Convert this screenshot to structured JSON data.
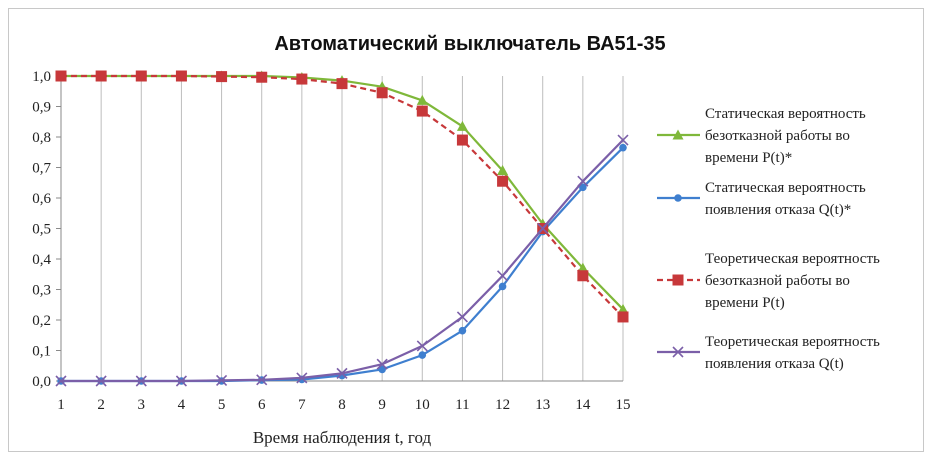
{
  "chart_data": {
    "type": "line",
    "title": "Автоматический выключатель ВА51-35",
    "xlabel": "Время наблюдения t, год",
    "ylabel": "",
    "x": [
      1,
      2,
      3,
      4,
      5,
      6,
      7,
      8,
      9,
      10,
      11,
      12,
      13,
      14,
      15
    ],
    "x_tick_labels": [
      "1",
      "2",
      "3",
      "4",
      "5",
      "6",
      "7",
      "8",
      "9",
      "10",
      "11",
      "12",
      "13",
      "14",
      "15"
    ],
    "ylim": [
      0,
      1
    ],
    "y_tick_labels": [
      "0,0",
      "0,1",
      "0,2",
      "0,3",
      "0,4",
      "0,5",
      "0,6",
      "0,7",
      "0,8",
      "0,9",
      "1,0"
    ],
    "grid": "vertical",
    "legend_position": "right",
    "series": [
      {
        "name": "Статическая вероятность безотказной работы во времени P(t)*",
        "legend_lines": [
          "Статическая вероятность",
          "безотказной работы во",
          "времени P(t)*"
        ],
        "color": "#7fb83a",
        "marker": "triangle",
        "dash": "solid",
        "values": [
          1.0,
          1.0,
          1.0,
          1.0,
          1.0,
          1.0,
          0.995,
          0.985,
          0.965,
          0.92,
          0.835,
          0.69,
          0.515,
          0.37,
          0.235
        ]
      },
      {
        "name": "Статическая вероятность появления отказа Q(t)*",
        "legend_lines": [
          "Статическая вероятность",
          "появления отказа Q(t)*"
        ],
        "color": "#3f7fcf",
        "marker": "circle",
        "dash": "solid",
        "values": [
          0.0,
          0.0,
          0.0,
          0.0,
          0.0,
          0.003,
          0.005,
          0.018,
          0.038,
          0.085,
          0.165,
          0.31,
          0.49,
          0.635,
          0.765
        ]
      },
      {
        "name": "Теоретическая вероятность безотказной работы во времени P(t)",
        "legend_lines": [
          "Теоретическая вероятность",
          "безотказной работы во",
          "времени P(t)"
        ],
        "color": "#c7383a",
        "marker": "square",
        "dash": "dashed",
        "values": [
          1.0,
          1.0,
          1.0,
          1.0,
          0.998,
          0.996,
          0.99,
          0.975,
          0.945,
          0.885,
          0.79,
          0.655,
          0.5,
          0.345,
          0.21
        ]
      },
      {
        "name": "Теоретическая вероятность появления отказа Q(t)",
        "legend_lines": [
          "Теоретическая вероятность",
          "появления отказа Q(t)"
        ],
        "color": "#7b5fa8",
        "marker": "cross",
        "dash": "solid",
        "values": [
          0.0,
          0.0,
          0.0,
          0.0,
          0.002,
          0.004,
          0.01,
          0.025,
          0.055,
          0.115,
          0.21,
          0.345,
          0.5,
          0.655,
          0.79
        ]
      }
    ]
  }
}
